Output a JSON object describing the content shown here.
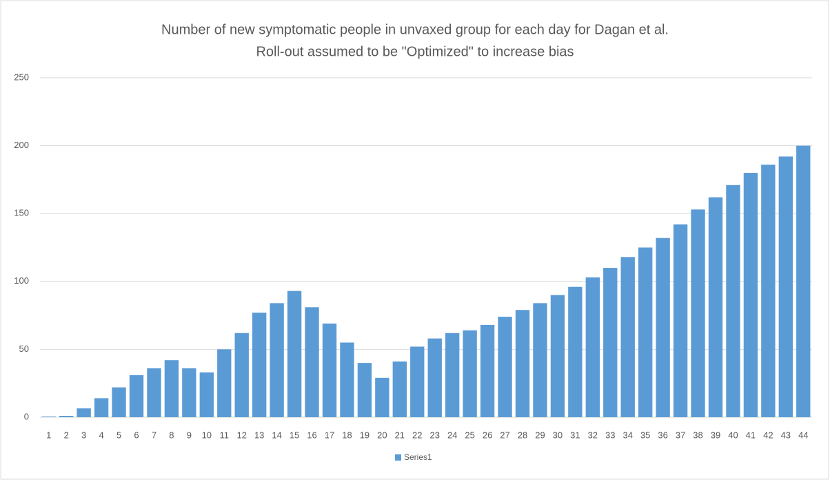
{
  "chart_data": {
    "type": "bar",
    "title": "Number of new symptomatic people in unvaxed group for each day for Dagan et al.",
    "subtitle": "Roll-out assumed to be \"Optimized\" to increase bias",
    "categories": [
      "1",
      "2",
      "3",
      "4",
      "5",
      "6",
      "7",
      "8",
      "9",
      "10",
      "11",
      "12",
      "13",
      "14",
      "15",
      "16",
      "17",
      "18",
      "19",
      "20",
      "21",
      "22",
      "23",
      "24",
      "25",
      "26",
      "27",
      "28",
      "29",
      "30",
      "31",
      "32",
      "33",
      "34",
      "35",
      "36",
      "37",
      "38",
      "39",
      "40",
      "41",
      "42",
      "43",
      "44"
    ],
    "series": [
      {
        "name": "Series1",
        "color": "#5b9bd5",
        "values": [
          0.5,
          1,
          6.5,
          14,
          22,
          31,
          36,
          42,
          36,
          33,
          50,
          62,
          77,
          84,
          93,
          81,
          69,
          55,
          40,
          29,
          41,
          52,
          58,
          62,
          64,
          68,
          74,
          79,
          84,
          90,
          96,
          103,
          110,
          118,
          125,
          132,
          142,
          153,
          162,
          171,
          180,
          186,
          192,
          200
        ]
      }
    ],
    "ylim": [
      0,
      250
    ],
    "yticks": [
      0,
      50,
      100,
      150,
      200,
      250
    ],
    "grid": true,
    "legend": "bottom"
  }
}
